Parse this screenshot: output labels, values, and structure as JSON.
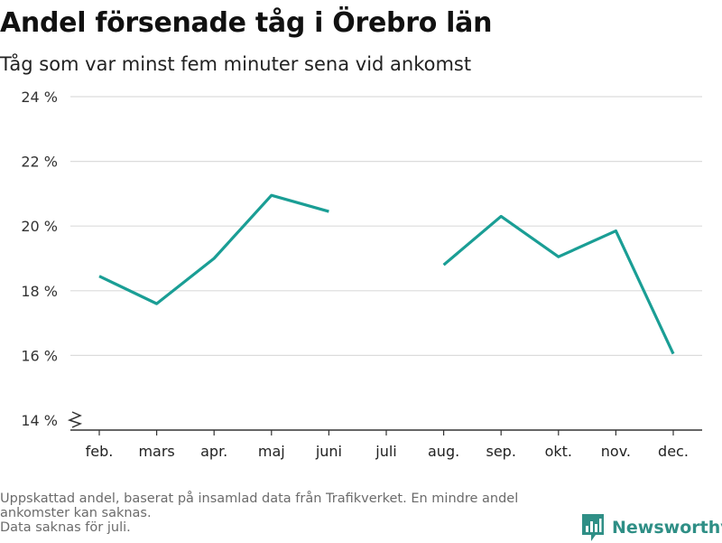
{
  "header": {
    "title": "Andel försenade tåg i Örebro län",
    "subtitle": "Tåg som var minst fem minuter sena vid ankomst"
  },
  "chart_data": {
    "type": "line",
    "categories": [
      "feb.",
      "mars",
      "apr.",
      "maj",
      "juni",
      "juli",
      "aug.",
      "sep.",
      "okt.",
      "nov.",
      "dec."
    ],
    "series": [
      {
        "values": [
          18.45,
          17.6,
          19.0,
          20.95,
          20.45,
          null,
          18.8,
          20.3,
          19.05,
          19.85,
          16.05
        ]
      }
    ],
    "yticks": [
      14,
      16,
      18,
      20,
      22,
      24
    ],
    "ytick_labels": [
      "14 %",
      "16 %",
      "18 %",
      "20 %",
      "22 %",
      "24 %"
    ],
    "ylim": [
      14,
      24
    ],
    "y_axis_break": true,
    "grid": true,
    "line_color": "#1a9e95"
  },
  "footer": {
    "notes": [
      "Uppskattad andel, baserat på insamlad data från Trafikverket. En mindre andel",
      "ankomster kan saknas.",
      "Data saknas för juli."
    ],
    "brand_name": "Newsworthy",
    "brand_icon": "newsworthy-logo-icon",
    "brand_color": "#2f8f86"
  }
}
